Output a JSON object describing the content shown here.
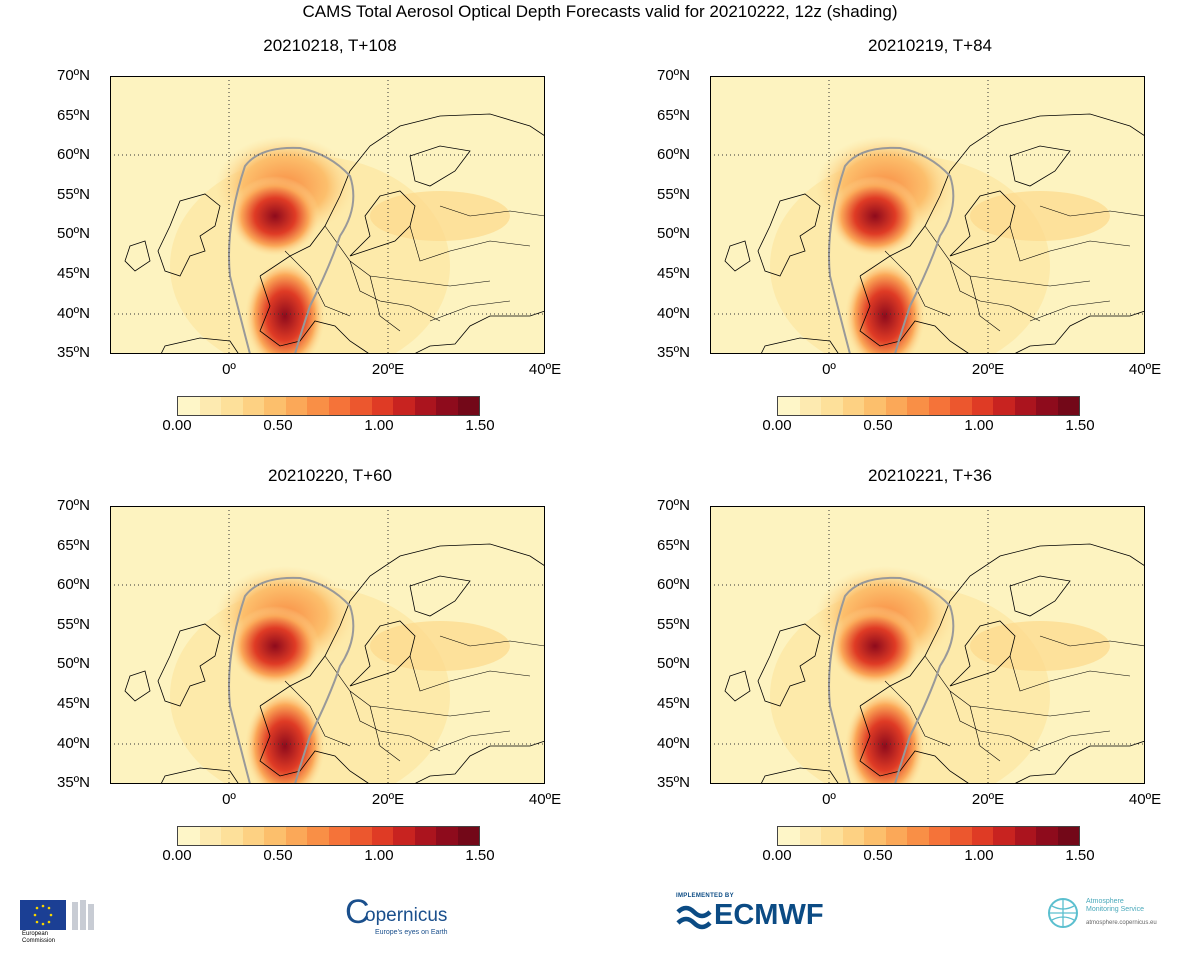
{
  "title": "CAMS Total Aerosol Optical Depth Forecasts valid for 20210222, 12z (shading)",
  "panels": [
    {
      "label": "20210218, T+108"
    },
    {
      "label": "20210219, T+84"
    },
    {
      "label": "20210220, T+60"
    },
    {
      "label": "20210221, T+36"
    }
  ],
  "lat_labels": [
    "70ºN",
    "65ºN",
    "60ºN",
    "55ºN",
    "50ºN",
    "45ºN",
    "40ºN",
    "35ºN"
  ],
  "lon_labels": [
    "0º",
    "20ºE",
    "40ºE"
  ],
  "colorbar": {
    "ticks": [
      "0.00",
      "0.50",
      "1.00",
      "1.50"
    ],
    "colors": [
      "#fef6c8",
      "#fdeab0",
      "#fde09a",
      "#fdd183",
      "#fcbf6c",
      "#fba858",
      "#f98f46",
      "#f57339",
      "#ec572e",
      "#df3b25",
      "#c82320",
      "#ab141e",
      "#8e0b1c",
      "#730818"
    ]
  },
  "logos": {
    "ec_line1": "European",
    "ec_line2": "Commission",
    "copernicus": "opernicus",
    "copernicus_c": "C",
    "copernicus_sub": "Europe's eyes on Earth",
    "ecmwf_top": "IMPLEMENTED BY",
    "ecmwf": "ECMWF",
    "ams_line1": "Atmosphere",
    "ams_line2": "Monitoring Service",
    "ams_url": "atmosphere.copernicus.eu"
  }
}
